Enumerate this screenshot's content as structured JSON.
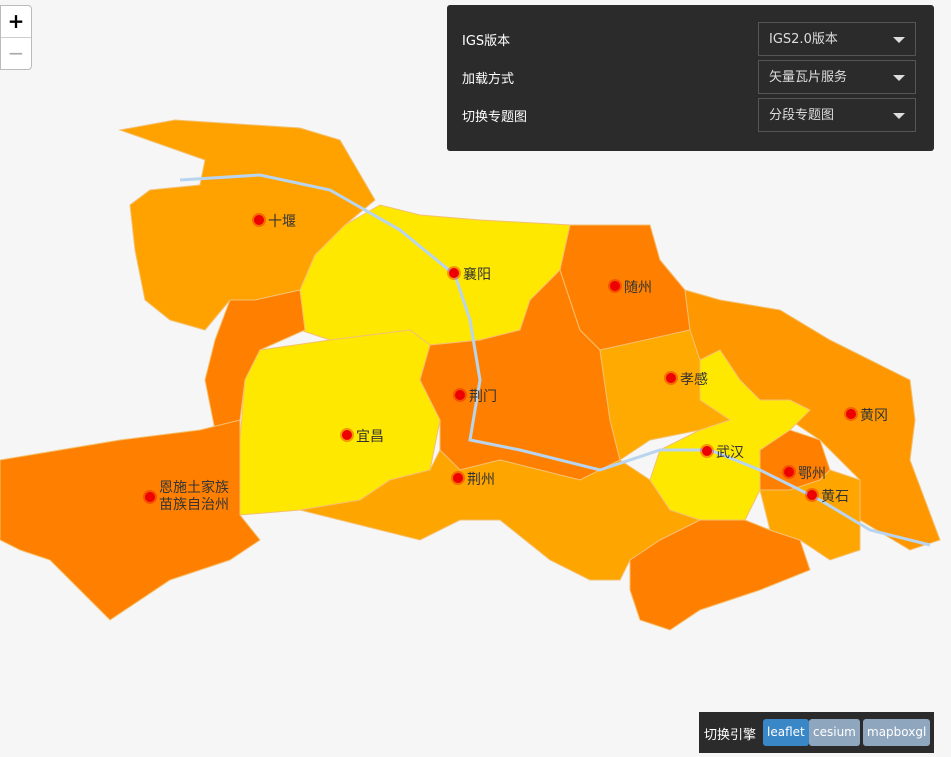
{
  "zoom": {
    "in": "+",
    "out": "−"
  },
  "panel": {
    "rows": [
      {
        "label": "IGS版本",
        "value": "IGS2.0版本"
      },
      {
        "label": "加载方式",
        "value": "矢量瓦片服务"
      },
      {
        "label": "切换专题图",
        "value": "分段专题图"
      }
    ]
  },
  "cities": [
    {
      "name": "十堰"
    },
    {
      "name": "襄阳"
    },
    {
      "name": "随州"
    },
    {
      "name": "孝感"
    },
    {
      "name": "荆门"
    },
    {
      "name": "宜昌"
    },
    {
      "name": "黄冈"
    },
    {
      "name": "武汉"
    },
    {
      "name": "鄂州"
    },
    {
      "name": "黄石"
    },
    {
      "name": "荆州"
    },
    {
      "name": "恩施土家族苗族自治州"
    }
  ],
  "engine": {
    "label": "切换引擎",
    "buttons": [
      "leaflet",
      "cesium",
      "mapboxgl"
    ]
  }
}
